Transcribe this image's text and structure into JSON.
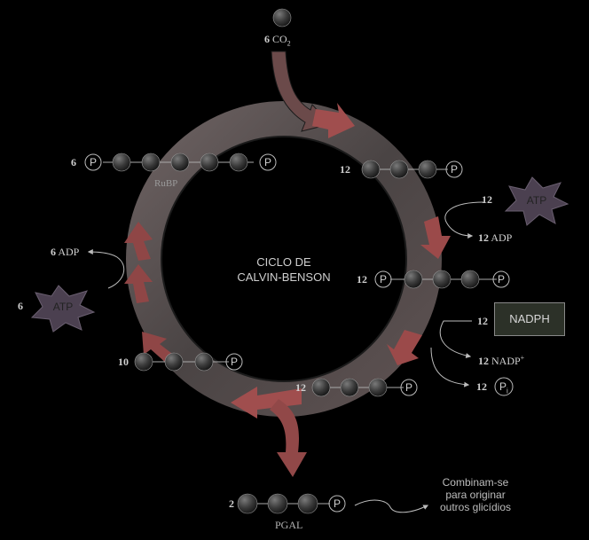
{
  "diagram": {
    "title_line1": "CICLO DE",
    "title_line2": "CALVIN-BENSON",
    "co2": {
      "count": "6",
      "label": "CO",
      "sub": "2"
    },
    "rubp": {
      "count": "6",
      "label": "RuBP",
      "phosphate": "P"
    },
    "pga": {
      "count": "12",
      "phosphate": "P"
    },
    "atp_right": {
      "count": "12",
      "label": "ATP"
    },
    "adp_right": {
      "count": "12",
      "label": "ADP"
    },
    "bisphospho": {
      "count": "12",
      "phosphate": "P"
    },
    "nadph": {
      "count": "12",
      "label": "NADPH"
    },
    "nadp": {
      "count": "12",
      "label": "NADP",
      "sup": "+"
    },
    "pi": {
      "count": "12",
      "label": "P",
      "sub": "i"
    },
    "pgal_inner": {
      "count": "12",
      "phosphate": "P"
    },
    "pgal_recycle": {
      "count": "10",
      "phosphate": "P"
    },
    "atp_left": {
      "count": "6",
      "label": "ATP"
    },
    "adp_left": {
      "count": "6",
      "label": "ADP"
    },
    "pgal_out": {
      "count": "2",
      "label": "PGAL",
      "phosphate": "P"
    },
    "final_note_1": "Combinam-se",
    "final_note_2": "para originar",
    "final_note_3": "outros glicídios"
  },
  "colors": {
    "arrow": "#9a4b4b",
    "ring": "#6a6a6a",
    "carbon": "#3a3a3a",
    "star": "#4a3f4f"
  }
}
